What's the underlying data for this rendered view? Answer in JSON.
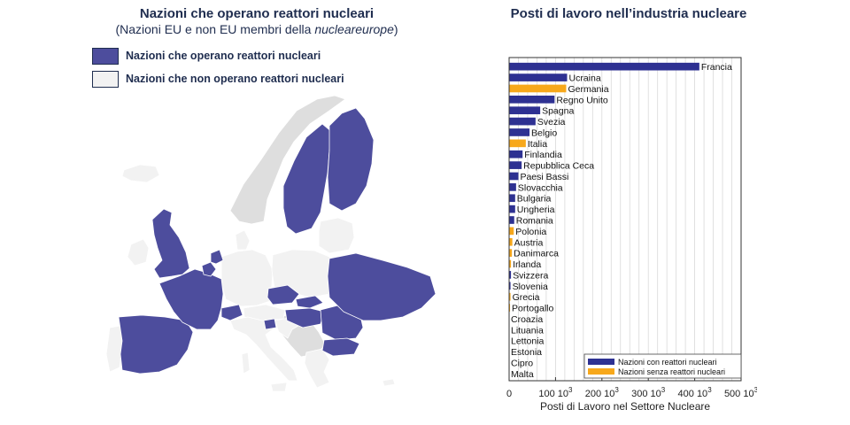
{
  "map": {
    "title": "Nazioni che operano reattori nucleari",
    "subtitle_prefix": "(Nazioni EU e non EU membri della ",
    "subtitle_emph": "nucleareurope",
    "subtitle_suffix": ")",
    "legend": [
      {
        "label": "Nazioni che operano reattori nucleari",
        "color": "#4d4d9d"
      },
      {
        "label": "Nazioni che non operano reattori nucleari",
        "color": "#f2f2f2"
      }
    ]
  },
  "colors": {
    "with_reactors": "#2e3192",
    "without_reactors": "#f7a81b",
    "map_with": "#4d4d9d",
    "map_without": "#f2f2f2",
    "map_other": "#dedede",
    "title": "#1f2d4f"
  },
  "chart_data": {
    "type": "bar",
    "orientation": "horizontal",
    "title": "Posti di lavoro nell’industria nucleare",
    "xlabel": "Posti di Lavoro nel Settore Nucleare",
    "xlim": [
      0,
      500
    ],
    "xticks": [
      0,
      100,
      200,
      300,
      400,
      500
    ],
    "xtick_unit_base": "10",
    "xtick_unit_exp": "3",
    "grid": true,
    "legend_position": "bottom-right",
    "legend": [
      {
        "label": "Nazioni con reattori nucleari",
        "key": "with_reactors"
      },
      {
        "label": "Nazioni senza reattori nucleari",
        "key": "without_reactors"
      }
    ],
    "bars": [
      {
        "country": "Francia",
        "value": 410,
        "nuclear": true
      },
      {
        "country": "Ucraina",
        "value": 125,
        "nuclear": true
      },
      {
        "country": "Germania",
        "value": 123,
        "nuclear": false
      },
      {
        "country": "Regno Unito",
        "value": 98,
        "nuclear": true
      },
      {
        "country": "Spagna",
        "value": 67,
        "nuclear": true
      },
      {
        "country": "Svezia",
        "value": 57,
        "nuclear": true
      },
      {
        "country": "Belgio",
        "value": 44,
        "nuclear": true
      },
      {
        "country": "Italia",
        "value": 36,
        "nuclear": false
      },
      {
        "country": "Finlandia",
        "value": 29,
        "nuclear": true
      },
      {
        "country": "Repubblica Ceca",
        "value": 27,
        "nuclear": true
      },
      {
        "country": "Paesi Bassi",
        "value": 20,
        "nuclear": true
      },
      {
        "country": "Slovacchia",
        "value": 15,
        "nuclear": true
      },
      {
        "country": "Bulgaria",
        "value": 13,
        "nuclear": true
      },
      {
        "country": "Ungheria",
        "value": 13,
        "nuclear": true
      },
      {
        "country": "Romania",
        "value": 11,
        "nuclear": true
      },
      {
        "country": "Polonia",
        "value": 10,
        "nuclear": false
      },
      {
        "country": "Austria",
        "value": 7,
        "nuclear": false
      },
      {
        "country": "Danimarca",
        "value": 6,
        "nuclear": false
      },
      {
        "country": "Irlanda",
        "value": 4,
        "nuclear": false
      },
      {
        "country": "Svizzera",
        "value": 4,
        "nuclear": true
      },
      {
        "country": "Slovenia",
        "value": 3,
        "nuclear": true
      },
      {
        "country": "Grecia",
        "value": 3,
        "nuclear": false
      },
      {
        "country": "Portogallo",
        "value": 2,
        "nuclear": false
      },
      {
        "country": "Croazia",
        "value": 0,
        "nuclear": false
      },
      {
        "country": "Lituania",
        "value": 0,
        "nuclear": false
      },
      {
        "country": "Lettonia",
        "value": 0,
        "nuclear": false
      },
      {
        "country": "Estonia",
        "value": 0,
        "nuclear": false
      },
      {
        "country": "Cipro",
        "value": 0,
        "nuclear": false
      },
      {
        "country": "Malta",
        "value": 0,
        "nuclear": false
      }
    ]
  }
}
